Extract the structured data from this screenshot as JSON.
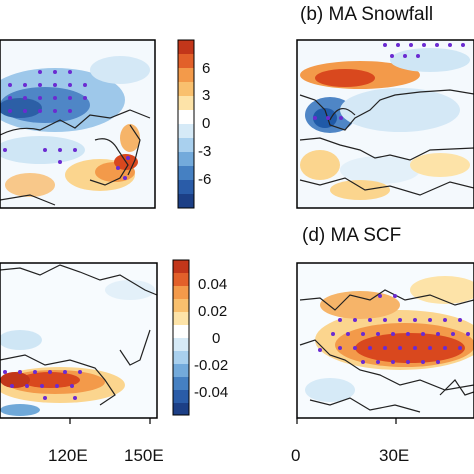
{
  "panels": {
    "b": {
      "title": "(b) MA Snowfall"
    },
    "d": {
      "title": "(d) MA SCF"
    }
  },
  "colorbars": {
    "top": {
      "labels": [
        "6",
        "3",
        "0",
        "-3",
        "-6"
      ]
    },
    "bottom": {
      "labels": [
        "0.04",
        "0.02",
        "0",
        "-0.02",
        "-0.04"
      ]
    }
  },
  "x_ticks": {
    "left": [
      "120E",
      "150E"
    ],
    "right": [
      "0",
      "30E"
    ]
  },
  "colors": {
    "warm_strong": "#d9481e",
    "warm_mid": "#f39a4a",
    "warm_light": "#fbd58e",
    "cool_light": "#cfe6f5",
    "cool_mid": "#6fa8d8",
    "cool_strong": "#1f5aa8",
    "stipple": "#6b2bd1"
  },
  "chart_data": [
    {
      "type": "heatmap",
      "title": "",
      "colorbar_ticks": [
        6,
        3,
        0,
        -3,
        -6
      ]
    },
    {
      "type": "heatmap",
      "title": "(b) MA Snowfall"
    },
    {
      "type": "heatmap",
      "title": "",
      "xticks": [
        "120E",
        "150E"
      ],
      "colorbar_ticks": [
        0.04,
        0.02,
        0,
        -0.02,
        -0.04
      ]
    },
    {
      "type": "heatmap",
      "title": "(d) MA SCF",
      "xticks": [
        "0",
        "30E"
      ]
    }
  ]
}
